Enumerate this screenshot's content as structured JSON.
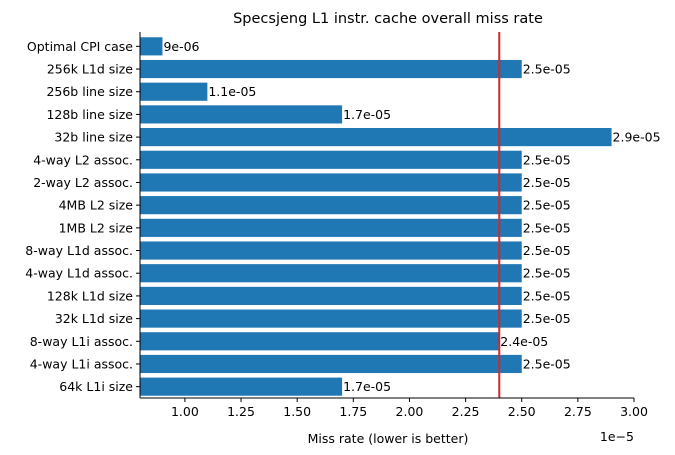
{
  "chart_data": {
    "type": "bar",
    "orientation": "horizontal",
    "title": "Specsjeng L1 instr. cache overall miss rate",
    "xlabel": "Miss rate (lower is better)",
    "ylabel": "",
    "x_offset_label": "1e−5",
    "xlim": [
      8e-06,
      3e-05
    ],
    "x_ticks": [
      1e-05,
      1.25e-05,
      1.5e-05,
      1.75e-05,
      2e-05,
      2.25e-05,
      2.5e-05,
      2.75e-05,
      3e-05
    ],
    "x_tick_labels": [
      "1.00",
      "1.25",
      "1.50",
      "1.75",
      "2.00",
      "2.25",
      "2.50",
      "2.75",
      "3.00"
    ],
    "categories": [
      "Optimal CPI case",
      "256k L1d size",
      "256b line size",
      "128b line size",
      "32b line size",
      "4-way L2 assoc.",
      "2-way L2 assoc.",
      "4MB L2 size",
      "1MB L2 size",
      "8-way L1d assoc.",
      "4-way L1d assoc.",
      "128k L1d size",
      "32k L1d size",
      "8-way L1i assoc.",
      "4-way L1i assoc.",
      "64k L1i size"
    ],
    "values": [
      9e-06,
      2.5e-05,
      1.1e-05,
      1.7e-05,
      2.9e-05,
      2.5e-05,
      2.5e-05,
      2.5e-05,
      2.5e-05,
      2.5e-05,
      2.5e-05,
      2.5e-05,
      2.5e-05,
      2.4e-05,
      2.5e-05,
      1.7e-05
    ],
    "value_labels": [
      "9e-06",
      "2.5e-05",
      "1.1e-05",
      "1.7e-05",
      "2.9e-05",
      "2.5e-05",
      "2.5e-05",
      "2.5e-05",
      "2.5e-05",
      "2.5e-05",
      "2.5e-05",
      "2.5e-05",
      "2.5e-05",
      "2.4e-05",
      "2.5e-05",
      "1.7e-05"
    ],
    "reference_line": {
      "x": 2.4e-05
    },
    "colors": {
      "bar": "#1f77b4",
      "reference_line": "#d62728"
    },
    "grid": false,
    "legend": "none"
  }
}
